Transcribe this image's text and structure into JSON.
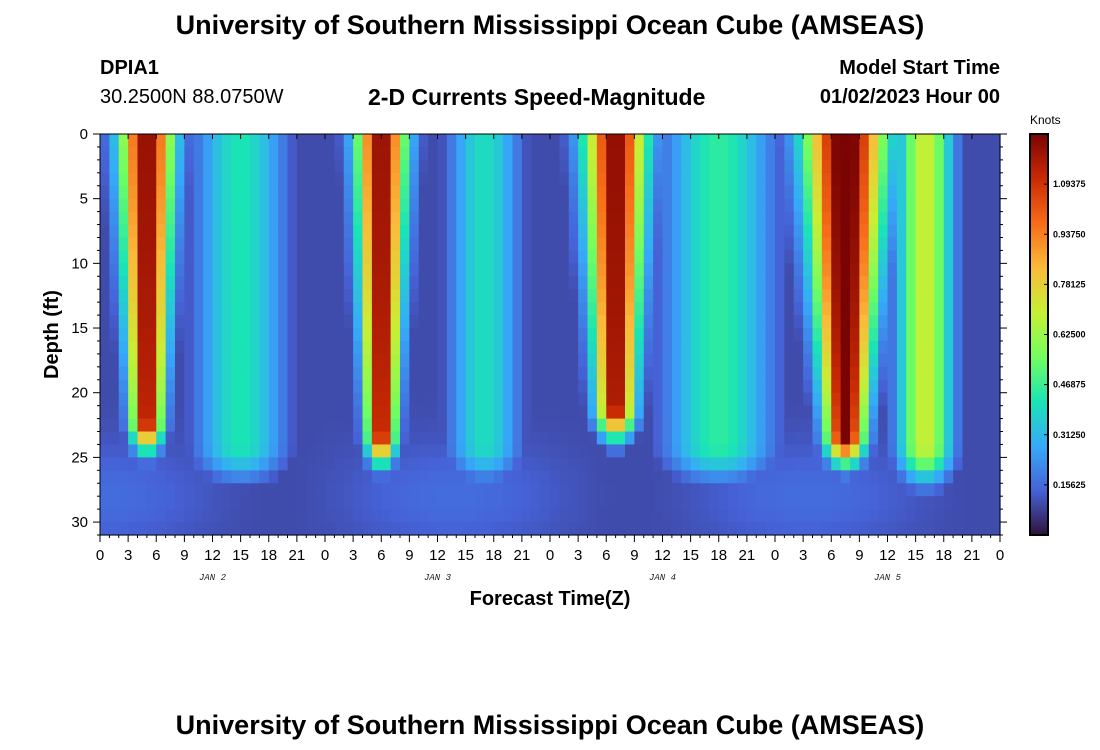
{
  "header": {
    "title": "University of Southern Mississippi Ocean Cube (AMSEAS)",
    "station_id": "DPIA1",
    "coords": "30.2500N  88.0750W",
    "subtitle": "2-D Currents Speed-Magnitude",
    "start_label": "Model Start Time",
    "start_value": "01/02/2023 Hour 00"
  },
  "footer": {
    "title": "University of Southern Mississippi Ocean Cube (AMSEAS)"
  },
  "colors": {
    "scale": [
      "#30123b",
      "#4662d7",
      "#36aaf9",
      "#1ae4b6",
      "#72fe5e",
      "#c8ef34",
      "#faba39",
      "#f66b19",
      "#ca2a04",
      "#7a0403"
    ]
  },
  "chart_data": {
    "type": "heatmap",
    "title": "2-D Currents Speed-Magnitude",
    "xlabel": "Forecast Time(Z)",
    "ylabel": "Depth (ft)",
    "x_range_hours": [
      0,
      96
    ],
    "y_range_ft": [
      0,
      31
    ],
    "x_ticks": [
      "0",
      "3",
      "6",
      "9",
      "12",
      "15",
      "18",
      "21",
      "0",
      "3",
      "6",
      "9",
      "12",
      "15",
      "18",
      "21",
      "0",
      "3",
      "6",
      "9",
      "12",
      "15",
      "18",
      "21",
      "0",
      "3",
      "6",
      "9",
      "12",
      "15",
      "18",
      "21",
      "0"
    ],
    "y_ticks": [
      0,
      5,
      10,
      15,
      20,
      25,
      30
    ],
    "y_tick_labels": [
      "0",
      "5",
      "10",
      "15",
      "20",
      "25",
      "30"
    ],
    "date_labels": [
      {
        "label": "JAN 2",
        "hour": 12
      },
      {
        "label": "JAN 3",
        "hour": 36
      },
      {
        "label": "JAN 4",
        "hour": 60
      },
      {
        "label": "JAN 5",
        "hour": 84
      }
    ],
    "colorbar": {
      "units": "Knots",
      "min": 0.0,
      "max": 1.25,
      "tick_values": [
        0.15625,
        0.3125,
        0.46875,
        0.625,
        0.78125,
        0.9375,
        1.09375
      ],
      "tick_labels": [
        "0.15625",
        "0.31250",
        "0.46875",
        "0.62500",
        "0.78125",
        "0.93750",
        "1.09375"
      ]
    },
    "grid": false,
    "field_features": {
      "description_units": "hour, depth ft, speed knots",
      "background_knots": 0.12,
      "high_speed_plumes": [
        {
          "center_hour": 5.0,
          "peak_knots": 1.12,
          "extent_depth_ft": 22
        },
        {
          "center_hour": 30.0,
          "peak_knots": 1.12,
          "extent_depth_ft": 23
        },
        {
          "center_hour": 55.0,
          "peak_knots": 1.12,
          "extent_depth_ft": 21
        },
        {
          "center_hour": 79.5,
          "peak_knots": 1.2,
          "extent_depth_ft": 23
        }
      ]
    }
  }
}
